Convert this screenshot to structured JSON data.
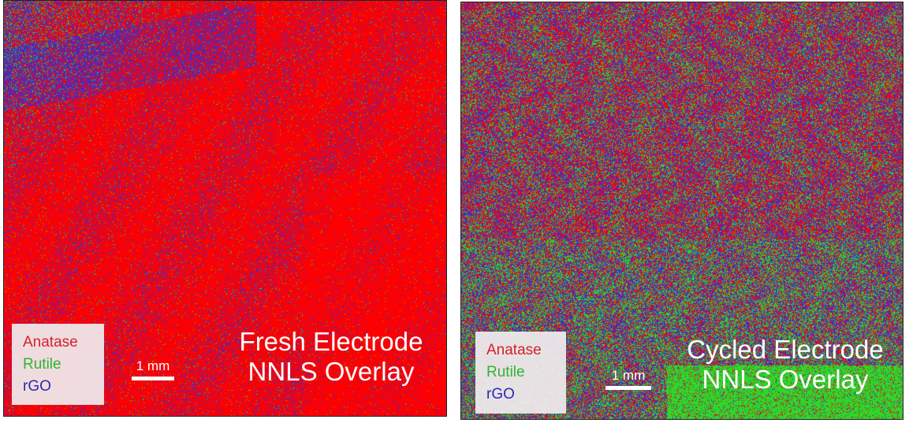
{
  "panels": [
    {
      "title_line1": "Fresh Electrode",
      "title_line2": "NNLS Overlay",
      "scale_label": "1 mm",
      "legend": [
        "Anatase",
        "Rutile",
        "rGO"
      ]
    },
    {
      "title_line1": "Cycled Electrode",
      "title_line2": "NNLS Overlay",
      "scale_label": "1 mm",
      "legend": [
        "Anatase",
        "Rutile",
        "rGO"
      ]
    }
  ],
  "colors": {
    "anatase": "#ff0000",
    "rutile": "#2bd92b",
    "rgo": "#3b2ccf",
    "anatase_text": "#d6202a",
    "rutile_text": "#2fb52f",
    "rgo_text": "#2a2ab0"
  }
}
